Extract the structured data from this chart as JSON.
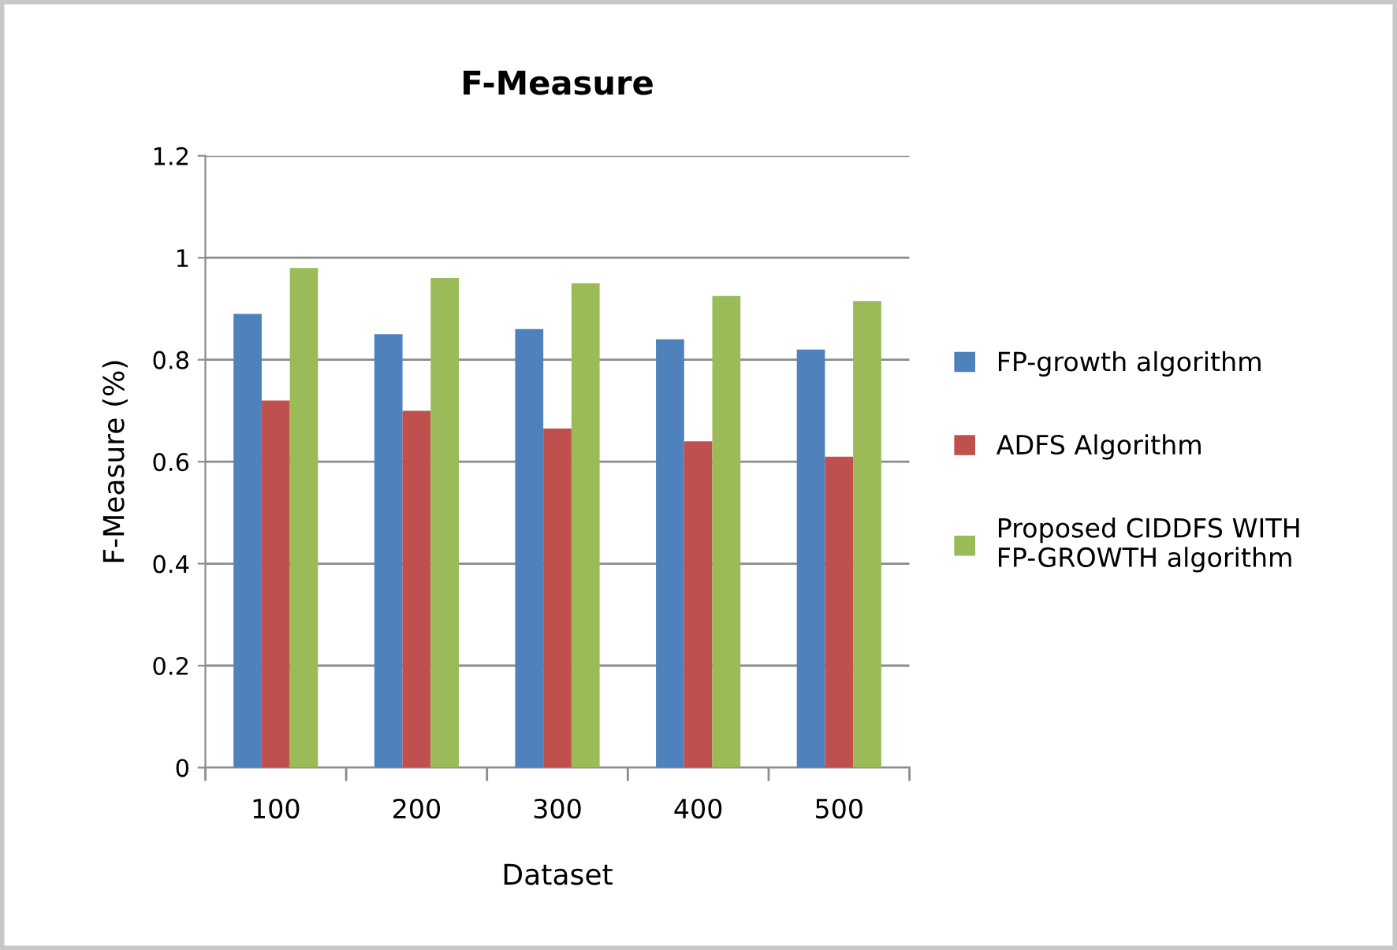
{
  "chart_data": {
    "type": "bar",
    "title": "F-Measure",
    "xlabel": "Dataset",
    "ylabel": "F-Measure (%)",
    "categories": [
      "100",
      "200",
      "300",
      "400",
      "500"
    ],
    "series": [
      {
        "name": "FP-growth algorithm",
        "color": "#4f81bd",
        "values": [
          0.89,
          0.85,
          0.86,
          0.84,
          0.82
        ]
      },
      {
        "name": "ADFS Algorithm",
        "color": "#c0504d",
        "values": [
          0.72,
          0.7,
          0.665,
          0.64,
          0.61
        ]
      },
      {
        "name": "Proposed CIDDFS WITH FP-GROWTH algorithm",
        "color": "#9bbb59",
        "values": [
          0.98,
          0.96,
          0.95,
          0.925,
          0.915
        ]
      }
    ],
    "ylim": [
      0,
      1.2
    ],
    "yticks": [
      0,
      0.2,
      0.4,
      0.6,
      0.8,
      1,
      1.2
    ],
    "grid": "y",
    "legend": "right"
  }
}
